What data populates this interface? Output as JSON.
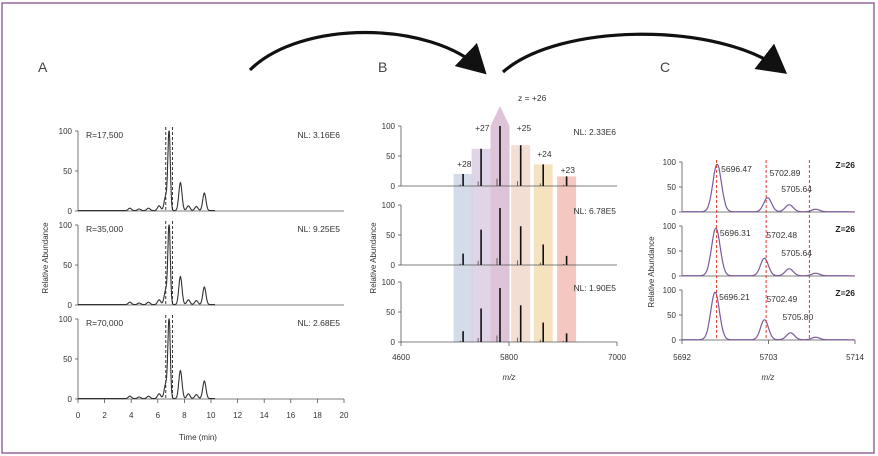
{
  "panels": {
    "A": {
      "letter": "A",
      "ylabel": "Relative Abundance",
      "xlabel": "Time (min)",
      "xlim": [
        0,
        20
      ],
      "x_ticks": [
        0,
        2,
        4,
        6,
        8,
        10,
        12,
        14,
        16,
        18,
        20
      ],
      "y_ticks": [
        0,
        50,
        100
      ],
      "traces": [
        {
          "resolution": "R=17,500",
          "nl": "NL: 3.16E6"
        },
        {
          "resolution": "R=35,000",
          "nl": "NL: 9.25E5"
        },
        {
          "resolution": "R=70,000",
          "nl": "NL: 2.68E5"
        }
      ],
      "peaks": [
        {
          "t": 3.9,
          "h": 3
        },
        {
          "t": 4.6,
          "h": 2
        },
        {
          "t": 5.3,
          "h": 3
        },
        {
          "t": 6.1,
          "h": 6
        },
        {
          "t": 6.6,
          "h": 18
        },
        {
          "t": 6.85,
          "h": 100
        },
        {
          "t": 7.7,
          "h": 35
        },
        {
          "t": 8.3,
          "h": 6
        },
        {
          "t": 8.9,
          "h": 5
        },
        {
          "t": 9.5,
          "h": 22
        }
      ],
      "selection_window": [
        6.6,
        7.1
      ]
    },
    "B": {
      "letter": "B",
      "ylabel": "Relative Abundance",
      "xlabel": "m/z",
      "xlim": [
        4600,
        7000
      ],
      "x_ticks": [
        4600,
        5800,
        7000
      ],
      "y_ticks": [
        0,
        50,
        100
      ],
      "nl": [
        "NL: 2.33E6",
        "NL: 6.78E5",
        "NL: 1.90E5"
      ],
      "charge_header": "z = +26",
      "charge_states": [
        {
          "label": "+28",
          "mz": 5290,
          "h": 20,
          "color": "#c9d3e3"
        },
        {
          "label": "+27",
          "mz": 5490,
          "h": 62,
          "color": "#d7cbe0"
        },
        {
          "label": "+26",
          "mz": 5700,
          "h": 100,
          "color": "#d9b9d2"
        },
        {
          "label": "+25",
          "mz": 5930,
          "h": 68,
          "color": "#f0d6c9"
        },
        {
          "label": "+24",
          "mz": 6180,
          "h": 36,
          "color": "#f3dcb0"
        },
        {
          "label": "+23",
          "mz": 6440,
          "h": 16,
          "color": "#f1b9b0"
        }
      ]
    },
    "C": {
      "letter": "C",
      "ylabel": "Relative Abundance",
      "xlabel": "m/z",
      "xlim": [
        5692,
        5714
      ],
      "x_ticks": [
        5692,
        5703,
        5714
      ],
      "y_ticks": [
        0,
        50,
        100
      ],
      "red_lines": [
        5696.4,
        5702.7,
        5708.2
      ],
      "spectra": [
        {
          "z": "Z=26",
          "labels": [
            "5696.47",
            "5702.89",
            "5705.64"
          ],
          "peaks": [
            [
              5696.47,
              95
            ],
            [
              5702.89,
              28
            ],
            [
              5705.64,
              14
            ],
            [
              5709,
              5
            ]
          ]
        },
        {
          "z": "Z=26",
          "labels": [
            "5696.31",
            "5702.48",
            "5705.64"
          ],
          "peaks": [
            [
              5696.31,
              95
            ],
            [
              5702.48,
              35
            ],
            [
              5705.64,
              14
            ],
            [
              5709,
              5
            ]
          ]
        },
        {
          "z": "Z=26",
          "labels": [
            "5696.21",
            "5702.49",
            "5705.80"
          ],
          "peaks": [
            [
              5696.21,
              95
            ],
            [
              5702.49,
              40
            ],
            [
              5705.8,
              14
            ],
            [
              5709,
              5
            ]
          ]
        }
      ]
    }
  },
  "colors": {
    "trace": "#333333",
    "spectrum_c": "#7a5a9a",
    "red": "#e03a2f",
    "frame": "#8a4e8c"
  }
}
